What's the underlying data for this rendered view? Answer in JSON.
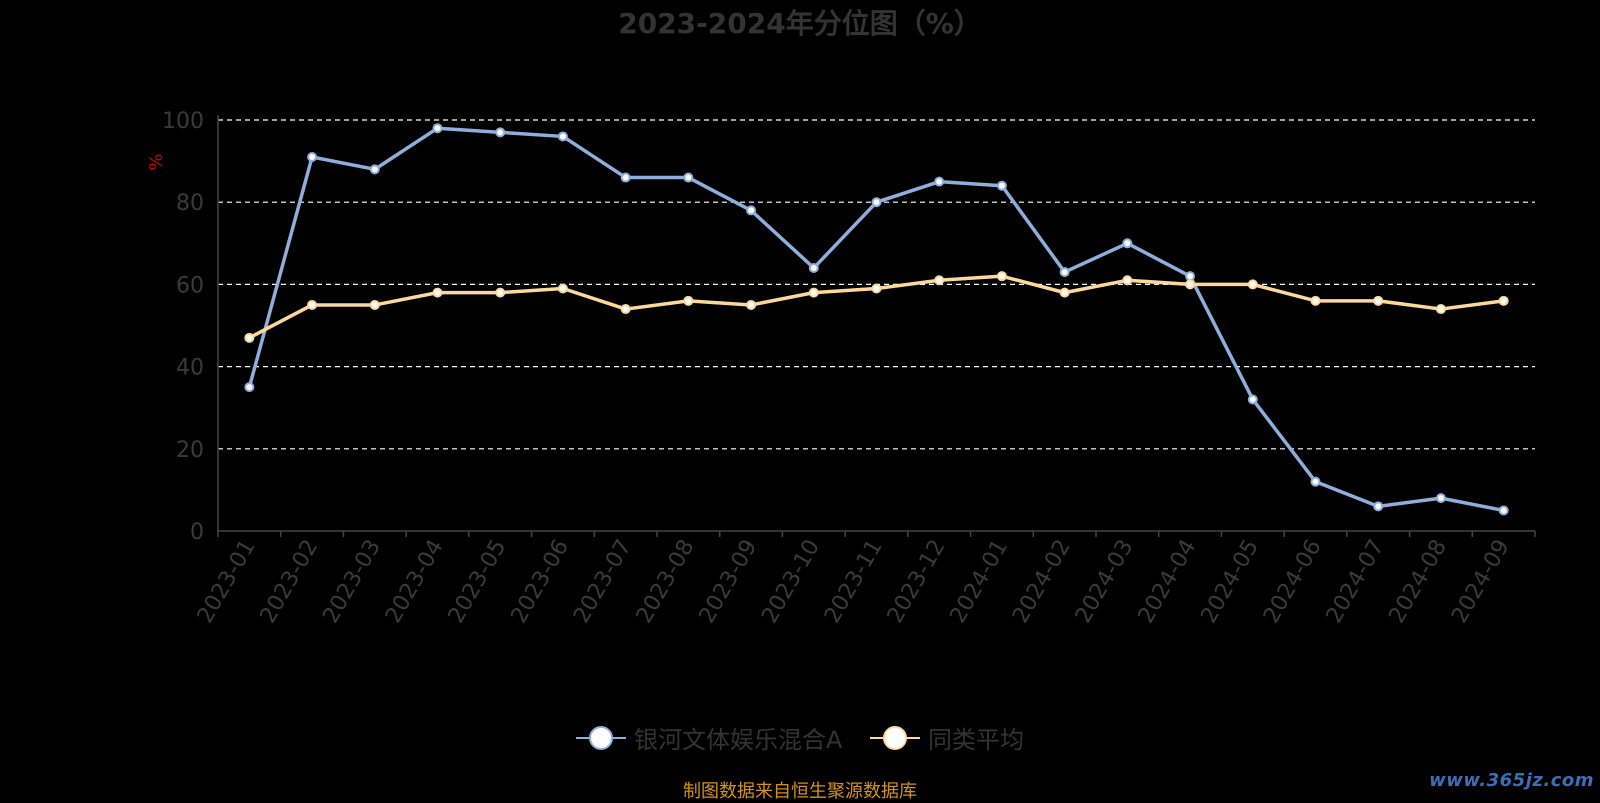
{
  "chart_data": {
    "type": "line",
    "title": "2023-2024年分位图（%）",
    "ylabel": "%",
    "ylim": [
      0,
      100
    ],
    "yticks": [
      "0",
      "20",
      "40",
      "60",
      "80",
      "100"
    ],
    "grid": true,
    "legend_position": "bottom",
    "categories": [
      "2023-01",
      "2023-02",
      "2023-03",
      "2023-04",
      "2023-05",
      "2023-06",
      "2023-07",
      "2023-08",
      "2023-09",
      "2023-10",
      "2023-11",
      "2023-12",
      "2024-01",
      "2024-02",
      "2024-03",
      "2024-04",
      "2024-05",
      "2024-06",
      "2024-07",
      "2024-08",
      "2024-09"
    ],
    "series": [
      {
        "name": "银河文体娱乐混合A",
        "color": "#8eaedb",
        "values": [
          35,
          91,
          88,
          98,
          97,
          96,
          86,
          86,
          78,
          64,
          80,
          85,
          84,
          63,
          70,
          62,
          32,
          12,
          6,
          8,
          5
        ]
      },
      {
        "name": "同类平均",
        "color": "#fcd99a",
        "values": [
          47,
          55,
          55,
          58,
          58,
          59,
          54,
          56,
          55,
          58,
          59,
          61,
          62,
          58,
          61,
          60,
          60,
          56,
          56,
          54,
          56
        ]
      }
    ]
  },
  "colors": {
    "background": "#000000",
    "title": "#333333",
    "axis_text": "#3a3a3a",
    "ylabel": "#cc0000",
    "grid": "#ffffff",
    "marker_fill": "#ffffff",
    "footer": "#d4921a",
    "watermark": "#3b6fb5"
  },
  "footer": "制图数据来自恒生聚源数据库",
  "watermark": "www.365jz.com"
}
